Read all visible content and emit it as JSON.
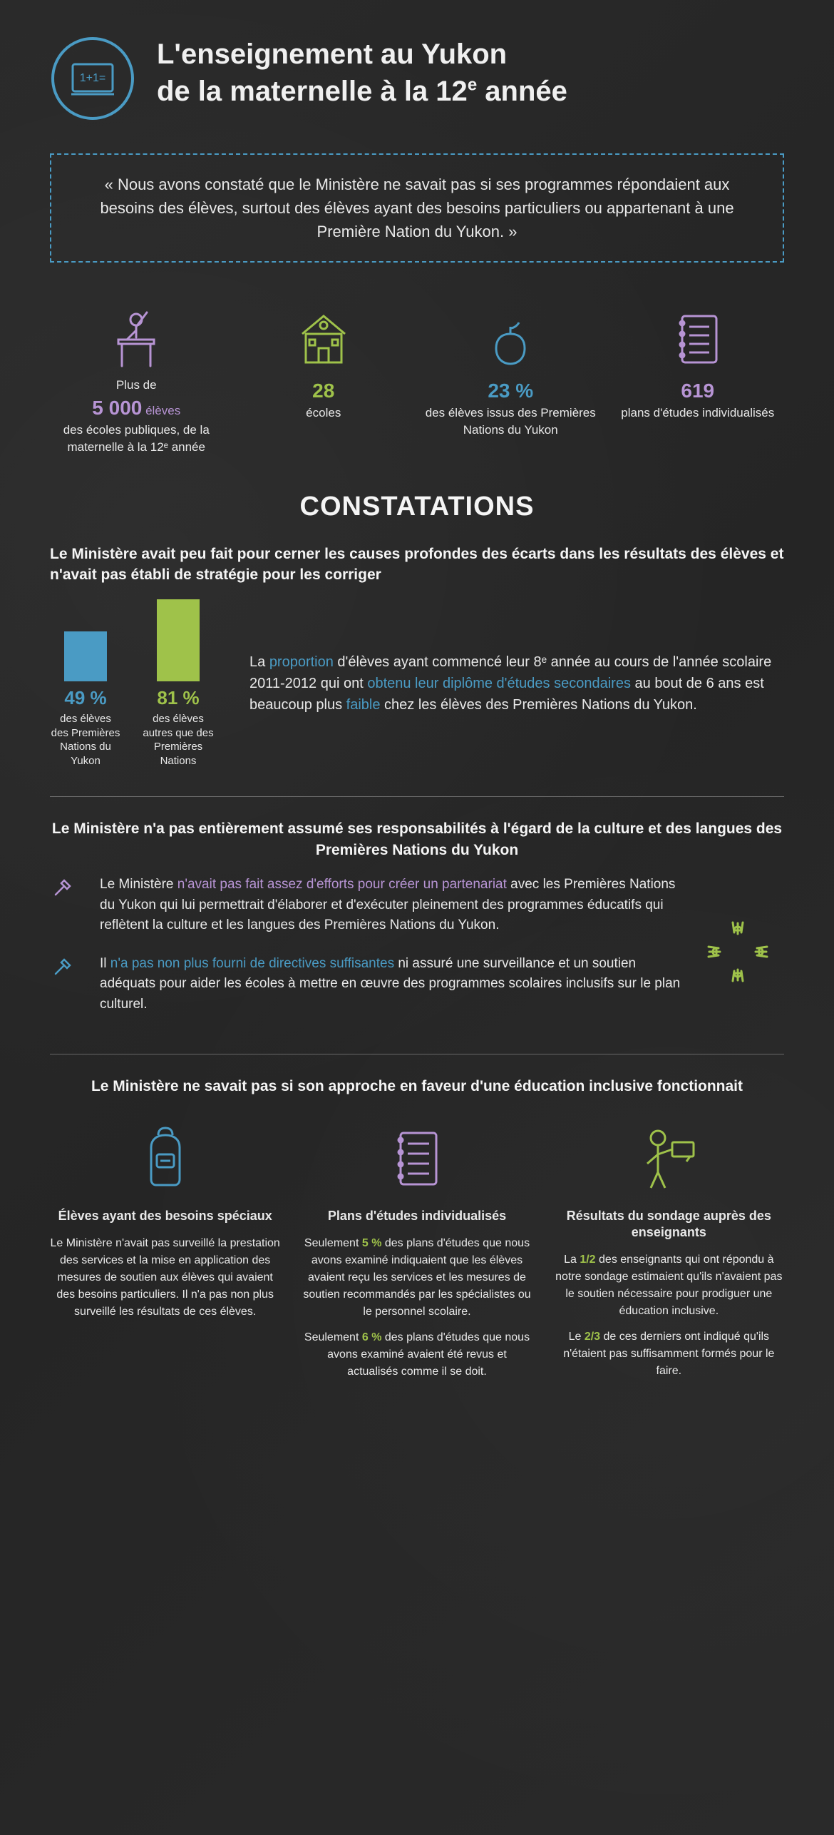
{
  "colors": {
    "purple": "#b794d4",
    "green": "#9fc24a",
    "blue": "#4a9bc4",
    "bg": "#2a2a2a",
    "text": "#e8e8e8"
  },
  "title_l1": "L'enseignement au Yukon",
  "title_l2": "de la maternelle à la 12",
  "title_sup": "e",
  "title_l2_end": " année",
  "quote": "« Nous avons constaté que le Ministère ne savait pas si ses programmes répondaient aux besoins des élèves, surtout des élèves ayant des besoins particuliers ou appartenant à une Première Nation du Yukon. »",
  "stats": [
    {
      "pre": "Plus de",
      "num": "5 000",
      "unit": " élèves",
      "post": "des écoles publiques, de la maternelle à la 12ᵉ année",
      "color": "purple"
    },
    {
      "pre": "",
      "num": "28",
      "unit": "",
      "post": "écoles",
      "color": "green"
    },
    {
      "pre": "",
      "num": "23 %",
      "unit": "",
      "post": "des élèves issus des Premières Nations du Yukon",
      "color": "blue"
    },
    {
      "pre": "",
      "num": "619",
      "unit": "",
      "post": "plans d'études individualisés",
      "color": "purple"
    }
  ],
  "section_title": "CONSTATATIONS",
  "finding1_heading": "Le Ministère avait peu fait pour cerner les causes profondes des écarts dans les résultats des élèves et n'avait pas établi de stratégie pour les corriger",
  "chart": {
    "type": "bar",
    "bars": [
      {
        "pct": "49 %",
        "height": 70,
        "color": "#4a9bc4",
        "label": "des élèves des Premières Nations du Yukon"
      },
      {
        "pct": "81 %",
        "height": 115,
        "color": "#9fc24a",
        "label": "des élèves autres que des Premières Nations"
      }
    ],
    "text_parts": {
      "p1": "La ",
      "h1": "proportion",
      "p2": " d'élèves ayant commencé leur 8ᵉ année au cours de l'année scolaire 2011-2012 qui ont ",
      "h2": "obtenu leur diplôme d'études secondaires",
      "p3": " au bout de 6 ans est beaucoup plus ",
      "h3": "faible",
      "p4": " chez les élèves des Premières Nations du Yukon."
    }
  },
  "finding2_heading": "Le Ministère n'a pas entièrement assumé ses responsabilités à l'égard de la culture et des langues des Premières Nations du Yukon",
  "finding2_items": [
    {
      "pre": "Le Ministère ",
      "hl": "n'avait pas fait assez d'efforts pour créer un partenariat",
      "post": " avec les Premières Nations du Yukon qui lui permettrait d'élaborer et d'exécuter pleinement des programmes éducatifs qui reflètent la culture et les langues des Premières Nations du Yukon.",
      "color": "purple"
    },
    {
      "pre": "Il ",
      "hl": "n'a pas non plus fourni de directives suffisantes",
      "post": " ni assuré une surveillance et un soutien adéquats pour aider les écoles à mettre en œuvre des programmes scolaires inclusifs sur le plan culturel.",
      "color": "blue"
    }
  ],
  "finding3_heading": "Le Ministère ne savait pas si son approche en faveur d'une éducation inclusive fonctionnait",
  "cols": [
    {
      "title": "Élèves ayant des besoins spéciaux",
      "paras": [
        {
          "text": "Le Ministère n'avait pas surveillé la prestation des services et la mise en application des mesures de soutien aux élèves qui avaient des besoins particuliers. Il n'a pas non plus surveillé les résultats de ces élèves."
        }
      ]
    },
    {
      "title": "Plans d'études individualisés",
      "paras": [
        {
          "p1": "Seulement ",
          "hl": "5 %",
          "p2": " des plans d'études que nous avons examiné indiquaient que les élèves avaient reçu les services et les mesures de soutien recommandés par les spécialistes ou le personnel scolaire.",
          "color": "green"
        },
        {
          "p1": "Seulement ",
          "hl": "6 %",
          "p2": " des plans d'études que nous avons examiné avaient été revus et actualisés comme il se doit.",
          "color": "green"
        }
      ]
    },
    {
      "title": "Résultats du sondage auprès des enseignants",
      "paras": [
        {
          "p1": "La ",
          "hl": "1/2",
          "p2": " des enseignants qui ont répondu à notre sondage estimaient qu'ils n'avaient pas le soutien nécessaire pour prodiguer une éducation inclusive.",
          "color": "green"
        },
        {
          "p1": "Le ",
          "hl": "2/3",
          "p2": " de ces derniers ont indiqué qu'ils n'étaient pas suffisamment formés pour le faire.",
          "color": "green"
        }
      ]
    }
  ]
}
